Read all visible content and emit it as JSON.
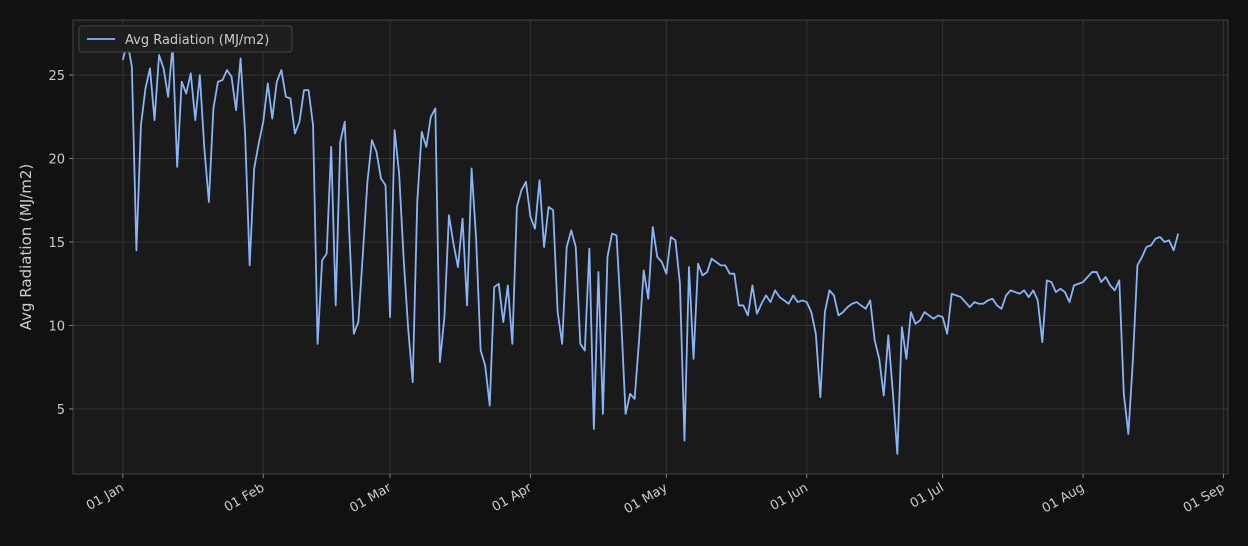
{
  "chart_data": {
    "type": "line",
    "y_label": "Avg Radiation (MJ/m2)",
    "x": [
      "01 Jan",
      "02 Jan",
      "03 Jan",
      "04 Jan",
      "05 Jan",
      "06 Jan",
      "07 Jan",
      "08 Jan",
      "09 Jan",
      "10 Jan",
      "11 Jan",
      "12 Jan",
      "13 Jan",
      "14 Jan",
      "15 Jan",
      "16 Jan",
      "17 Jan",
      "18 Jan",
      "19 Jan",
      "20 Jan",
      "21 Jan",
      "22 Jan",
      "23 Jan",
      "24 Jan",
      "25 Jan",
      "26 Jan",
      "27 Jan",
      "28 Jan",
      "29 Jan",
      "30 Jan",
      "31 Jan",
      "01 Feb",
      "02 Feb",
      "03 Feb",
      "04 Feb",
      "05 Feb",
      "06 Feb",
      "07 Feb",
      "08 Feb",
      "09 Feb",
      "10 Feb",
      "11 Feb",
      "12 Feb",
      "13 Feb",
      "14 Feb",
      "15 Feb",
      "16 Feb",
      "17 Feb",
      "18 Feb",
      "19 Feb",
      "20 Feb",
      "21 Feb",
      "22 Feb",
      "23 Feb",
      "24 Feb",
      "25 Feb",
      "26 Feb",
      "27 Feb",
      "28 Feb",
      "01 Mar",
      "02 Mar",
      "03 Mar",
      "04 Mar",
      "05 Mar",
      "06 Mar",
      "07 Mar",
      "08 Mar",
      "09 Mar",
      "10 Mar",
      "11 Mar",
      "12 Mar",
      "13 Mar",
      "14 Mar",
      "15 Mar",
      "16 Mar",
      "17 Mar",
      "18 Mar",
      "19 Mar",
      "20 Mar",
      "21 Mar",
      "22 Mar",
      "23 Mar",
      "24 Mar",
      "25 Mar",
      "26 Mar",
      "27 Mar",
      "28 Mar",
      "29 Mar",
      "30 Mar",
      "31 Mar",
      "01 Apr",
      "02 Apr",
      "03 Apr",
      "04 Apr",
      "05 Apr",
      "06 Apr",
      "07 Apr",
      "08 Apr",
      "09 Apr",
      "10 Apr",
      "11 Apr",
      "12 Apr",
      "13 Apr",
      "14 Apr",
      "15 Apr",
      "16 Apr",
      "17 Apr",
      "18 Apr",
      "19 Apr",
      "20 Apr",
      "21 Apr",
      "22 Apr",
      "23 Apr",
      "24 Apr",
      "25 Apr",
      "26 Apr",
      "27 Apr",
      "28 Apr",
      "29 Apr",
      "30 Apr",
      "01 May",
      "02 May",
      "03 May",
      "04 May",
      "05 May",
      "06 May",
      "07 May",
      "08 May",
      "09 May",
      "10 May",
      "11 May",
      "12 May",
      "13 May",
      "14 May",
      "15 May",
      "16 May",
      "17 May",
      "18 May",
      "19 May",
      "20 May",
      "21 May",
      "22 May",
      "23 May",
      "24 May",
      "25 May",
      "26 May",
      "27 May",
      "28 May",
      "29 May",
      "30 May",
      "31 May",
      "01 Jun",
      "02 Jun",
      "03 Jun",
      "04 Jun",
      "05 Jun",
      "06 Jun",
      "07 Jun",
      "08 Jun",
      "09 Jun",
      "10 Jun",
      "11 Jun",
      "12 Jun",
      "13 Jun",
      "14 Jun",
      "15 Jun",
      "16 Jun",
      "17 Jun",
      "18 Jun",
      "19 Jun",
      "20 Jun",
      "21 Jun",
      "22 Jun",
      "23 Jun",
      "24 Jun",
      "25 Jun",
      "26 Jun",
      "27 Jun",
      "28 Jun",
      "29 Jun",
      "30 Jun",
      "01 Jul",
      "02 Jul",
      "03 Jul",
      "04 Jul",
      "05 Jul",
      "06 Jul",
      "07 Jul",
      "08 Jul",
      "09 Jul",
      "10 Jul",
      "11 Jul",
      "12 Jul",
      "13 Jul",
      "14 Jul",
      "15 Jul",
      "16 Jul",
      "17 Jul",
      "18 Jul",
      "19 Jul",
      "20 Jul",
      "21 Jul",
      "22 Jul",
      "23 Jul",
      "24 Jul",
      "25 Jul",
      "26 Jul",
      "27 Jul",
      "28 Jul",
      "29 Jul",
      "30 Jul",
      "31 Jul",
      "01 Aug",
      "02 Aug",
      "03 Aug",
      "04 Aug",
      "05 Aug",
      "06 Aug",
      "07 Aug",
      "08 Aug",
      "09 Aug",
      "10 Aug",
      "11 Aug",
      "12 Aug",
      "13 Aug",
      "14 Aug",
      "15 Aug",
      "16 Aug",
      "17 Aug",
      "18 Aug",
      "19 Aug",
      "20 Aug",
      "21 Aug",
      "22 Aug"
    ],
    "series": [
      {
        "name": "Avg Radiation (MJ/m2)",
        "color": "#8ab4f8",
        "values": [
          25.9,
          27.0,
          25.5,
          14.5,
          22.0,
          24.2,
          25.4,
          22.3,
          26.2,
          25.4,
          23.7,
          26.8,
          19.5,
          24.6,
          23.9,
          25.1,
          22.3,
          25.0,
          20.6,
          17.4,
          23.0,
          24.6,
          24.7,
          25.3,
          24.9,
          22.9,
          26.0,
          21.5,
          13.6,
          19.4,
          20.9,
          22.2,
          24.5,
          22.4,
          24.6,
          25.3,
          23.7,
          23.6,
          21.5,
          22.2,
          24.1,
          24.1,
          22.0,
          8.9,
          13.9,
          14.3,
          20.7,
          11.2,
          21.0,
          22.2,
          15.6,
          9.5,
          10.2,
          14.3,
          18.6,
          21.1,
          20.4,
          18.8,
          18.4,
          10.5,
          21.7,
          19.1,
          14.0,
          9.8,
          6.6,
          17.4,
          21.6,
          20.7,
          22.5,
          23.0,
          7.8,
          10.5,
          16.6,
          14.9,
          13.5,
          16.4,
          11.2,
          19.4,
          15.2,
          8.5,
          7.6,
          5.2,
          12.3,
          12.5,
          10.2,
          12.4,
          8.9,
          17.1,
          18.1,
          18.6,
          16.5,
          15.8,
          18.7,
          14.7,
          17.1,
          16.9,
          10.8,
          8.9,
          14.7,
          15.7,
          14.7,
          8.9,
          8.5,
          14.6,
          3.8,
          13.2,
          4.7,
          14.1,
          15.5,
          15.4,
          10.5,
          4.7,
          5.9,
          5.6,
          9.2,
          13.3,
          11.6,
          15.9,
          14.1,
          13.8,
          13.1,
          15.3,
          15.1,
          12.5,
          3.1,
          13.5,
          8.0,
          13.7,
          13.0,
          13.2,
          14.0,
          13.8,
          13.6,
          13.6,
          13.1,
          13.1,
          11.2,
          11.2,
          10.6,
          12.4,
          10.7,
          11.3,
          11.8,
          11.4,
          12.1,
          11.7,
          11.5,
          11.3,
          11.8,
          11.4,
          11.5,
          11.4,
          10.8,
          9.5,
          5.7,
          10.8,
          12.1,
          11.8,
          10.6,
          10.8,
          11.1,
          11.3,
          11.4,
          11.2,
          11.0,
          11.5,
          9.1,
          8.0,
          5.8,
          9.4,
          6.0,
          2.3,
          9.9,
          8.0,
          10.8,
          10.1,
          10.3,
          10.8,
          10.6,
          10.4,
          10.6,
          10.5,
          9.5,
          11.9,
          11.8,
          11.7,
          11.4,
          11.1,
          11.4,
          11.3,
          11.3,
          11.5,
          11.6,
          11.2,
          11.0,
          11.8,
          12.1,
          12.0,
          11.9,
          12.1,
          11.7,
          12.1,
          11.5,
          9.0,
          12.7,
          12.6,
          12.0,
          12.2,
          12.0,
          11.4,
          12.4,
          12.5,
          12.6,
          12.9,
          13.2,
          13.2,
          12.6,
          12.9,
          12.4,
          12.1,
          12.7,
          5.9,
          3.5,
          7.9,
          13.6,
          14.1,
          14.7,
          14.8,
          15.2,
          15.3,
          15.0,
          15.1,
          14.5,
          15.5
        ]
      }
    ],
    "xlim": [
      "21 Dec",
      "02 Sep"
    ],
    "xticks": [
      "01 Jan",
      "01 Feb",
      "01 Mar",
      "01 Apr",
      "01 May",
      "01 Jun",
      "01 Jul",
      "01 Aug",
      "01 Sep"
    ],
    "ylim": [
      1.1,
      28.3
    ],
    "yticks": [
      5,
      10,
      15,
      20,
      25
    ],
    "grid": true,
    "legend": "upper left"
  }
}
